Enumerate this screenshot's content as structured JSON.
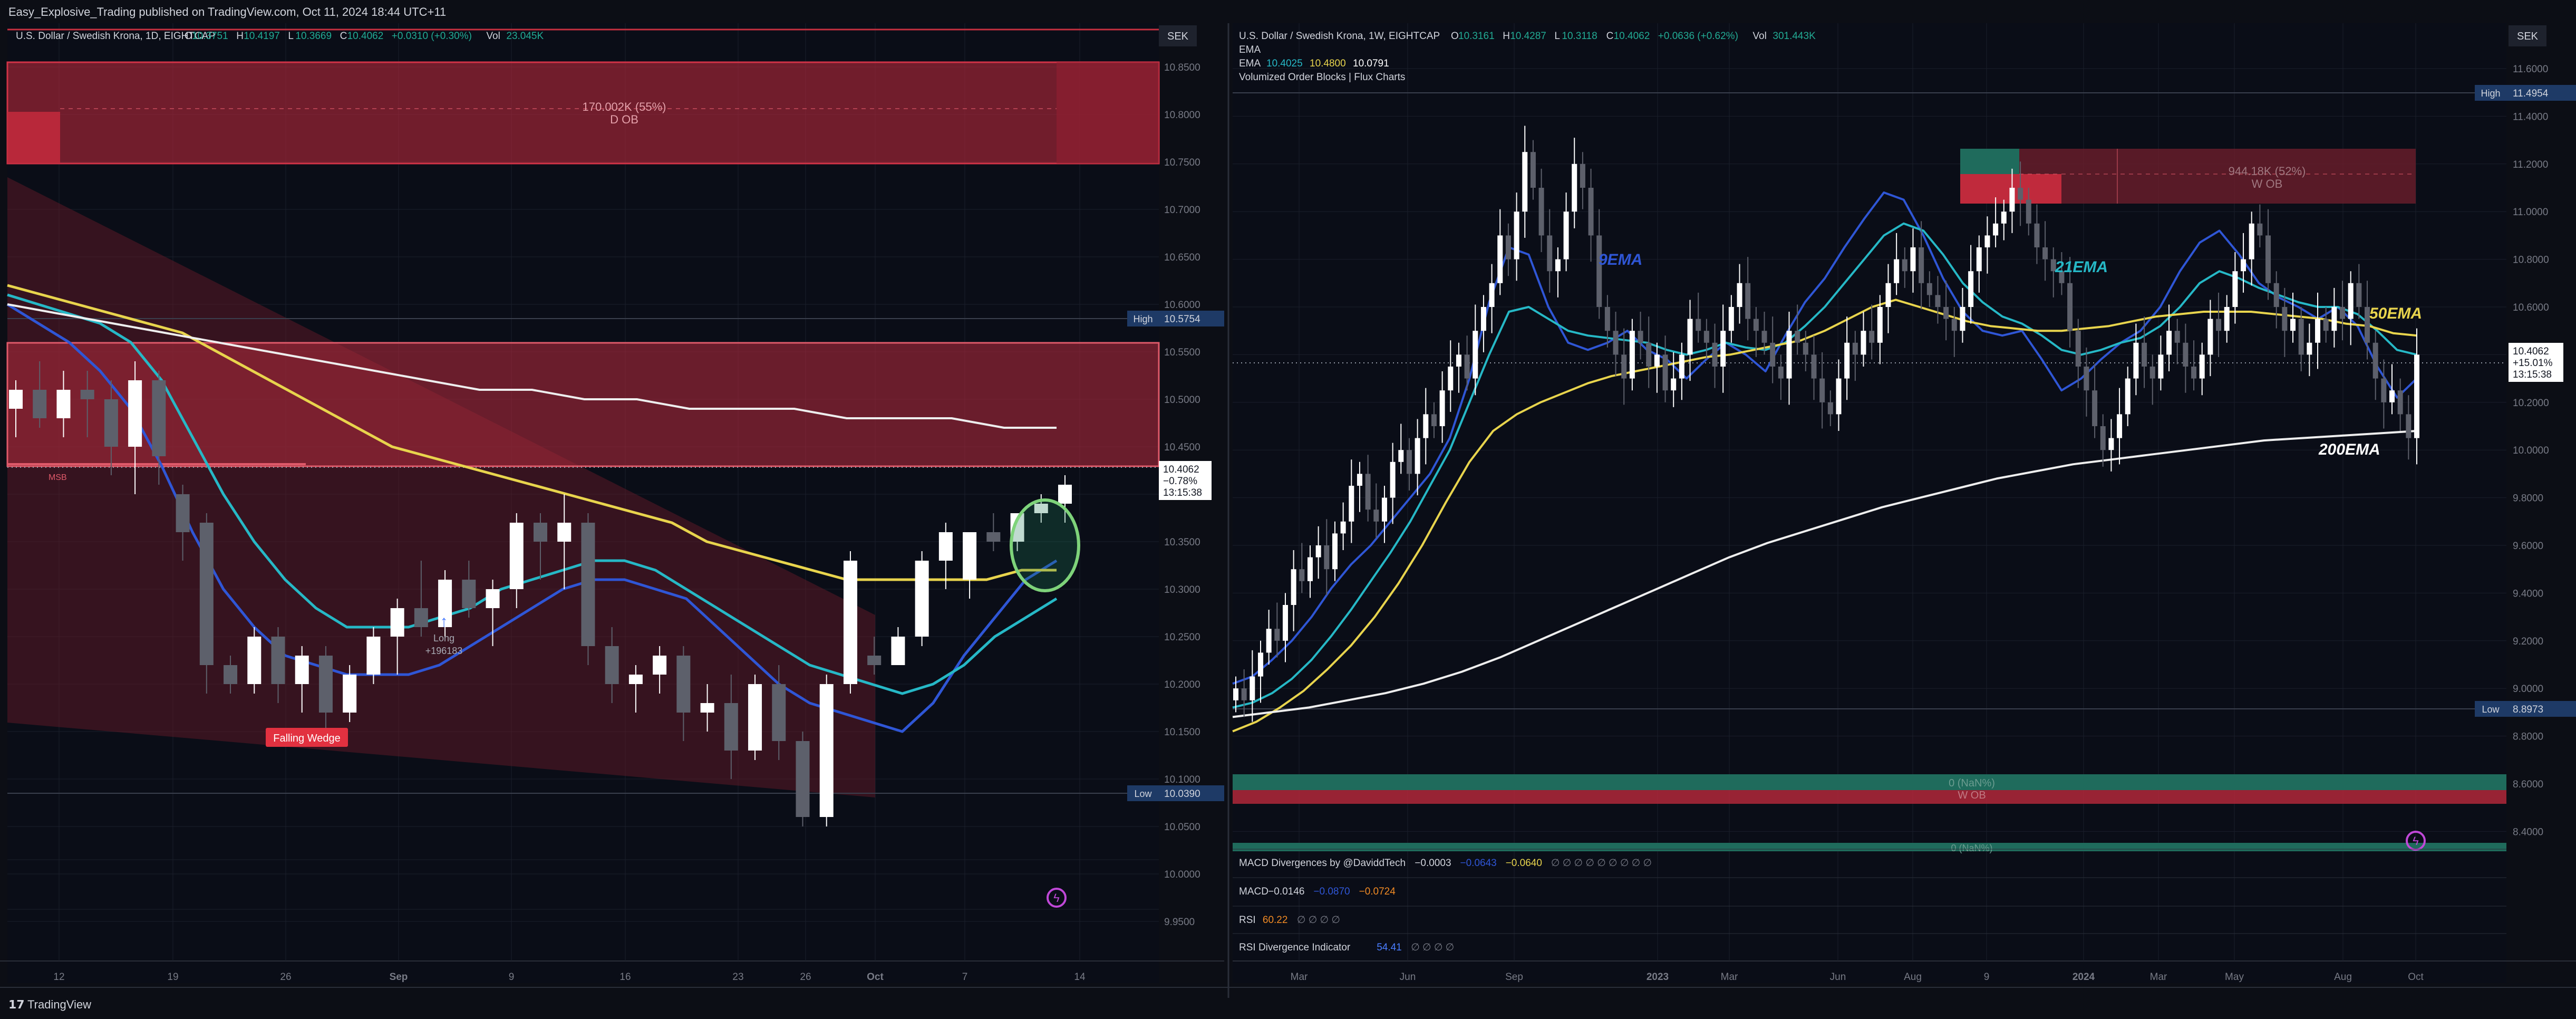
{
  "header": {
    "text": "Easy_Explosive_Trading published on TradingView.com, Oct 11, 2024 18:44 UTC+11"
  },
  "footer": {
    "brand": "TradingView"
  },
  "colors": {
    "bg": "#0c0e15",
    "panel_bg": "#0a0d17",
    "grid": "#1b1f2b",
    "divider": "#2a2e39",
    "text": "#d1d4dc",
    "muted": "#787b86",
    "up": "#ffffff",
    "down": "#5d606b",
    "ema9": "#2f56d6",
    "ema21": "#26b8c6",
    "ema50": "#e8d44d",
    "ema200": "#eeeeee",
    "red_zone": "#b2283a",
    "green_zone": "#1f6b5c",
    "green_circle": "#7ed37a",
    "badge_red": "#e23140"
  },
  "left": {
    "title": "U.S. Dollar / Swedish Krona, 1D, EIGHTCAP",
    "ohlc": [
      {
        "k": "O",
        "v": "10.3751"
      },
      {
        "k": "H",
        "v": "10.4197"
      },
      {
        "k": "L",
        "v": "10.3669"
      },
      {
        "k": "C",
        "v": "10.4062"
      },
      {
        "k": "",
        "v": "+0.0310 (+0.30%)"
      },
      {
        "k": "Vol",
        "v": "23.045K"
      }
    ],
    "currency": "SEK",
    "price_labels": [
      "10.8500",
      "10.8000",
      "10.7500",
      "10.7000",
      "10.6500",
      "10.6000",
      "10.5500",
      "10.5000",
      "10.4500",
      "10.4000",
      "10.3500",
      "10.3000",
      "10.2500",
      "10.2000",
      "10.1500",
      "10.1000",
      "10.0500",
      "10.0000",
      "9.9500"
    ],
    "high_tag": {
      "label": "High",
      "value": "10.5754"
    },
    "low_tag": {
      "label": "Low",
      "value": "10.0390"
    },
    "last_tag": {
      "price": "10.4062",
      "change": "−0.78%",
      "time": "13:15:38"
    },
    "ob_label": {
      "line1": "170.002K (55%)",
      "line2": "D OB"
    },
    "msb": "MSB",
    "long_label": {
      "line1": "Long",
      "line2": "+196183"
    },
    "falling_wedge": "Falling Wedge",
    "time_labels": [
      {
        "t": "12",
        "bold": false
      },
      {
        "t": "19",
        "bold": false
      },
      {
        "t": "26",
        "bold": false
      },
      {
        "t": "Sep",
        "bold": true
      },
      {
        "t": "9",
        "bold": false
      },
      {
        "t": "16",
        "bold": false
      },
      {
        "t": "23",
        "bold": false
      },
      {
        "t": "26",
        "bold": false
      },
      {
        "t": "Oct",
        "bold": true
      },
      {
        "t": "7",
        "bold": false
      },
      {
        "t": "14",
        "bold": false
      }
    ],
    "chart_data": {
      "type": "candlestick",
      "title": "U.S. Dollar / Swedish Krona, 1D, EIGHTCAP",
      "interval": "1D",
      "ylim": [
        9.93,
        10.87
      ],
      "ohlc": [
        [
          10.49,
          10.52,
          10.46,
          10.51
        ],
        [
          10.51,
          10.54,
          10.47,
          10.48
        ],
        [
          10.48,
          10.53,
          10.46,
          10.51
        ],
        [
          10.51,
          10.53,
          10.46,
          10.5
        ],
        [
          10.5,
          10.52,
          10.42,
          10.45
        ],
        [
          10.45,
          10.54,
          10.4,
          10.52
        ],
        [
          10.52,
          10.53,
          10.41,
          10.44
        ],
        [
          10.4,
          10.41,
          10.33,
          10.36
        ],
        [
          10.37,
          10.38,
          10.19,
          10.22
        ],
        [
          10.22,
          10.23,
          10.19,
          10.2
        ],
        [
          10.2,
          10.26,
          10.19,
          10.25
        ],
        [
          10.25,
          10.26,
          10.18,
          10.2
        ],
        [
          10.2,
          10.24,
          10.17,
          10.23
        ],
        [
          10.23,
          10.24,
          10.15,
          10.17
        ],
        [
          10.17,
          10.22,
          10.16,
          10.21
        ],
        [
          10.21,
          10.26,
          10.2,
          10.25
        ],
        [
          10.25,
          10.29,
          10.21,
          10.28
        ],
        [
          10.28,
          10.33,
          10.25,
          10.26
        ],
        [
          10.26,
          10.32,
          10.25,
          10.31
        ],
        [
          10.31,
          10.33,
          10.27,
          10.28
        ],
        [
          10.28,
          10.31,
          10.24,
          10.3
        ],
        [
          10.3,
          10.38,
          10.28,
          10.37
        ],
        [
          10.37,
          10.38,
          10.31,
          10.35
        ],
        [
          10.35,
          10.4,
          10.3,
          10.37
        ],
        [
          10.37,
          10.38,
          10.22,
          10.24
        ],
        [
          10.24,
          10.26,
          10.18,
          10.2
        ],
        [
          10.2,
          10.22,
          10.17,
          10.21
        ],
        [
          10.21,
          10.24,
          10.19,
          10.23
        ],
        [
          10.23,
          10.24,
          10.14,
          10.17
        ],
        [
          10.17,
          10.2,
          10.15,
          10.18
        ],
        [
          10.18,
          10.21,
          10.1,
          10.13
        ],
        [
          10.13,
          10.21,
          10.12,
          10.2
        ],
        [
          10.2,
          10.22,
          10.12,
          10.14
        ],
        [
          10.14,
          10.15,
          10.05,
          10.06
        ],
        [
          10.06,
          10.21,
          10.05,
          10.2
        ],
        [
          10.2,
          10.34,
          10.19,
          10.33
        ],
        [
          10.23,
          10.25,
          10.21,
          10.22
        ],
        [
          10.22,
          10.26,
          10.22,
          10.25
        ],
        [
          10.25,
          10.34,
          10.24,
          10.33
        ],
        [
          10.33,
          10.37,
          10.3,
          10.36
        ],
        [
          10.31,
          10.35,
          10.29,
          10.36
        ],
        [
          10.36,
          10.38,
          10.34,
          10.35
        ],
        [
          10.35,
          10.38,
          10.34,
          10.38
        ],
        [
          10.38,
          10.4,
          10.37,
          10.39
        ],
        [
          10.39,
          10.42,
          10.37,
          10.41
        ]
      ],
      "series": [
        {
          "name": "9EMA",
          "color": "#2f56d6",
          "values": [
            10.6,
            10.58,
            10.56,
            10.53,
            10.49,
            10.43,
            10.36,
            10.3,
            10.26,
            10.23,
            10.22,
            10.21,
            10.21,
            10.21,
            10.22,
            10.24,
            10.26,
            10.28,
            10.3,
            10.31,
            10.31,
            10.3,
            10.29,
            10.26,
            10.23,
            10.2,
            10.18,
            10.17,
            10.16,
            10.15,
            10.18,
            10.23,
            10.27,
            10.31,
            10.33
          ]
        },
        {
          "name": "21EMA",
          "color": "#26b8c6",
          "values": [
            10.61,
            10.6,
            10.59,
            10.58,
            10.56,
            10.52,
            10.46,
            10.4,
            10.35,
            10.31,
            10.28,
            10.26,
            10.26,
            10.26,
            10.27,
            10.28,
            10.3,
            10.31,
            10.32,
            10.33,
            10.33,
            10.32,
            10.3,
            10.28,
            10.26,
            10.24,
            10.22,
            10.21,
            10.2,
            10.19,
            10.2,
            10.22,
            10.25,
            10.27,
            10.29
          ]
        },
        {
          "name": "50EMA",
          "color": "#e8d44d",
          "values": [
            10.62,
            10.61,
            10.6,
            10.59,
            10.58,
            10.57,
            10.55,
            10.53,
            10.51,
            10.49,
            10.47,
            10.45,
            10.44,
            10.43,
            10.42,
            10.41,
            10.4,
            10.39,
            10.38,
            10.37,
            10.35,
            10.34,
            10.33,
            10.32,
            10.31,
            10.31,
            10.31,
            10.31,
            10.31,
            10.32,
            10.32
          ]
        },
        {
          "name": "200EMA",
          "color": "#eeeeee",
          "values": [
            10.6,
            10.59,
            10.58,
            10.57,
            10.56,
            10.55,
            10.54,
            10.53,
            10.52,
            10.51,
            10.51,
            10.5,
            10.5,
            10.49,
            10.49,
            10.49,
            10.48,
            10.48,
            10.48,
            10.47,
            10.47
          ]
        }
      ]
    }
  },
  "right": {
    "title": "U.S. Dollar / Swedish Krona, 1W, EIGHTCAP",
    "ohlc": [
      {
        "k": "O",
        "v": "10.3161"
      },
      {
        "k": "H",
        "v": "10.4287"
      },
      {
        "k": "L",
        "v": "10.3118"
      },
      {
        "k": "C",
        "v": "10.4062"
      },
      {
        "k": "",
        "v": "+0.0636 (+0.62%)"
      },
      {
        "k": "Vol",
        "v": "301.443K"
      }
    ],
    "ema_line1": "EMA",
    "ema_line2": {
      "label": "EMA",
      "v1": "10.4025",
      "v2": "10.4800",
      "v3": "10.0791"
    },
    "indicator_name": "Volumized Order Blocks | Flux Charts",
    "currency": "SEK",
    "price_labels": [
      "11.6000",
      "11.4000",
      "11.2000",
      "11.0000",
      "10.8000",
      "10.6000",
      "10.4000",
      "10.2000",
      "10.0000",
      "9.8000",
      "9.6000",
      "9.4000",
      "9.2000",
      "9.0000",
      "8.8000",
      "8.6000",
      "8.4000"
    ],
    "high_tag": {
      "label": "High",
      "value": "11.4954"
    },
    "low_tag": {
      "label": "Low",
      "value": "8.8973"
    },
    "last_tag": {
      "price": "10.4062",
      "change": "+15.01%",
      "time": "13:15:38"
    },
    "w_ob": {
      "line1": "944.18K (52%)",
      "line2": "W OB"
    },
    "bottom_zone": {
      "line1": "0 (NaN%)",
      "line2": "W OB"
    },
    "bottom_zone2": "0 (NaN%)",
    "ema_labels": {
      "ema9": "9EMA",
      "ema21": "21EMA",
      "ema50": "50EMA",
      "ema200": "200EMA"
    },
    "time_labels": [
      {
        "t": "Mar",
        "bold": false
      },
      {
        "t": "Jun",
        "bold": false
      },
      {
        "t": "Sep",
        "bold": false
      },
      {
        "t": "2023",
        "bold": true
      },
      {
        "t": "Mar",
        "bold": false
      },
      {
        "t": "Jun",
        "bold": false
      },
      {
        "t": "Aug",
        "bold": false
      },
      {
        "t": "9",
        "bold": false
      },
      {
        "t": "2024",
        "bold": true
      },
      {
        "t": "Mar",
        "bold": false
      },
      {
        "t": "May",
        "bold": false
      },
      {
        "t": "Aug",
        "bold": false
      },
      {
        "t": "Oct",
        "bold": false
      }
    ],
    "indicators": [
      {
        "name": "MACD Divergences by @DaviddTech",
        "values": [
          {
            "v": "−0.0003",
            "c": "#d1d4dc"
          },
          {
            "v": "−0.0643",
            "c": "#2f56d6"
          },
          {
            "v": "−0.0640",
            "c": "#e8d44d"
          }
        ],
        "dots": "∅ ∅ ∅ ∅ ∅ ∅ ∅ ∅ ∅"
      },
      {
        "name": "MACD",
        "values": [
          {
            "v": "−0.0146",
            "c": "#d1d4dc"
          },
          {
            "v": "−0.0870",
            "c": "#2f56d6"
          },
          {
            "v": "−0.0724",
            "c": "#f08a24"
          }
        ],
        "dots": ""
      },
      {
        "name": "RSI",
        "values": [
          {
            "v": "60.22",
            "c": "#f08a24"
          }
        ],
        "dots": "∅ ∅ ∅ ∅"
      },
      {
        "name": "RSI Divergence Indicator",
        "values": [
          {
            "v": "54.41",
            "c": "#4a7dff"
          }
        ],
        "dots": "∅ ∅ ∅ ∅"
      }
    ],
    "chart_data": {
      "type": "candlestick",
      "title": "U.S. Dollar / Swedish Krona, 1W, EIGHTCAP",
      "interval": "1W",
      "ylim": [
        8.3,
        11.72
      ],
      "closes": [
        9.0,
        8.95,
        9.05,
        9.15,
        9.25,
        9.2,
        9.35,
        9.5,
        9.45,
        9.55,
        9.6,
        9.5,
        9.65,
        9.7,
        9.85,
        9.9,
        9.75,
        9.7,
        9.8,
        9.95,
        10.0,
        9.9,
        10.05,
        10.15,
        10.1,
        10.25,
        10.35,
        10.4,
        10.3,
        10.5,
        10.6,
        10.7,
        10.9,
        10.8,
        11.0,
        11.25,
        11.1,
        10.9,
        10.75,
        10.8,
        11.0,
        11.2,
        11.1,
        10.9,
        10.6,
        10.5,
        10.4,
        10.3,
        10.5,
        10.45,
        10.35,
        10.4,
        10.25,
        10.3,
        10.4,
        10.55,
        10.5,
        10.45,
        10.35,
        10.5,
        10.6,
        10.7,
        10.55,
        10.5,
        10.45,
        10.35,
        10.3,
        10.5,
        10.45,
        10.4,
        10.3,
        10.2,
        10.15,
        10.3,
        10.45,
        10.4,
        10.5,
        10.45,
        10.6,
        10.7,
        10.8,
        10.75,
        10.85,
        10.7,
        10.65,
        10.6,
        10.55,
        10.5,
        10.6,
        10.75,
        10.85,
        10.9,
        10.95,
        11.0,
        11.1,
        11.05,
        10.95,
        10.85,
        10.8,
        10.75,
        10.7,
        10.5,
        10.35,
        10.25,
        10.1,
        10.0,
        10.05,
        10.15,
        10.3,
        10.45,
        10.35,
        10.3,
        10.4,
        10.5,
        10.45,
        10.35,
        10.3,
        10.4,
        10.55,
        10.5,
        10.6,
        10.75,
        10.8,
        10.95,
        10.9,
        10.7,
        10.6,
        10.5,
        10.55,
        10.4,
        10.45,
        10.55,
        10.5,
        10.6,
        10.55,
        10.7,
        10.6,
        10.45,
        10.3,
        10.2,
        10.25,
        10.15,
        10.05,
        10.4
      ],
      "series": [
        {
          "name": "9EMA",
          "color": "#2f56d6",
          "values": [
            9.02,
            9.05,
            9.12,
            9.2,
            9.3,
            9.42,
            9.52,
            9.6,
            9.7,
            9.8,
            9.9,
            10.05,
            10.3,
            10.62,
            10.85,
            10.82,
            10.6,
            10.45,
            10.42,
            10.45,
            10.5,
            10.42,
            10.38,
            10.3,
            10.38,
            10.45,
            10.4,
            10.33,
            10.48,
            10.62,
            10.72,
            10.85,
            10.97,
            11.08,
            11.05,
            10.9,
            10.72,
            10.58,
            10.5,
            10.48,
            10.5,
            10.38,
            10.25,
            10.3,
            10.38,
            10.45,
            10.5,
            10.6,
            10.75,
            10.87,
            10.92,
            10.82,
            10.7,
            10.64,
            10.6,
            10.55,
            10.6,
            10.52,
            10.35,
            10.22,
            10.3
          ]
        },
        {
          "name": "21EMA",
          "color": "#26b8c6",
          "values": [
            8.92,
            8.94,
            8.98,
            9.04,
            9.12,
            9.22,
            9.33,
            9.45,
            9.57,
            9.7,
            9.85,
            10.0,
            10.2,
            10.4,
            10.58,
            10.6,
            10.55,
            10.5,
            10.48,
            10.47,
            10.46,
            10.45,
            10.42,
            10.4,
            10.42,
            10.45,
            10.43,
            10.42,
            10.45,
            10.52,
            10.6,
            10.7,
            10.8,
            10.9,
            10.95,
            10.92,
            10.82,
            10.7,
            10.62,
            10.56,
            10.53,
            10.48,
            10.42,
            10.4,
            10.42,
            10.45,
            10.47,
            10.52,
            10.6,
            10.7,
            10.75,
            10.72,
            10.68,
            10.65,
            10.62,
            10.6,
            10.6,
            10.57,
            10.5,
            10.42,
            10.4
          ]
        },
        {
          "name": "50EMA",
          "color": "#e8d44d",
          "values": [
            8.82,
            8.86,
            8.92,
            8.99,
            9.08,
            9.18,
            9.3,
            9.44,
            9.6,
            9.78,
            9.95,
            10.08,
            10.15,
            10.2,
            10.24,
            10.28,
            10.31,
            10.33,
            10.35,
            10.37,
            10.39,
            10.4,
            10.42,
            10.44,
            10.46,
            10.5,
            10.55,
            10.6,
            10.63,
            10.6,
            10.57,
            10.54,
            10.52,
            10.51,
            10.5,
            10.5,
            10.51,
            10.52,
            10.54,
            10.56,
            10.57,
            10.58,
            10.58,
            10.58,
            10.57,
            10.56,
            10.55,
            10.53,
            10.52,
            10.49,
            10.48
          ]
        },
        {
          "name": "200EMA",
          "color": "#eeeeee",
          "values": [
            8.88,
            8.9,
            8.92,
            8.95,
            8.98,
            9.02,
            9.07,
            9.13,
            9.2,
            9.27,
            9.34,
            9.41,
            9.48,
            9.55,
            9.61,
            9.66,
            9.71,
            9.76,
            9.8,
            9.84,
            9.88,
            9.91,
            9.94,
            9.96,
            9.98,
            10.0,
            10.02,
            10.04,
            10.05,
            10.06,
            10.07,
            10.08
          ]
        }
      ]
    }
  }
}
